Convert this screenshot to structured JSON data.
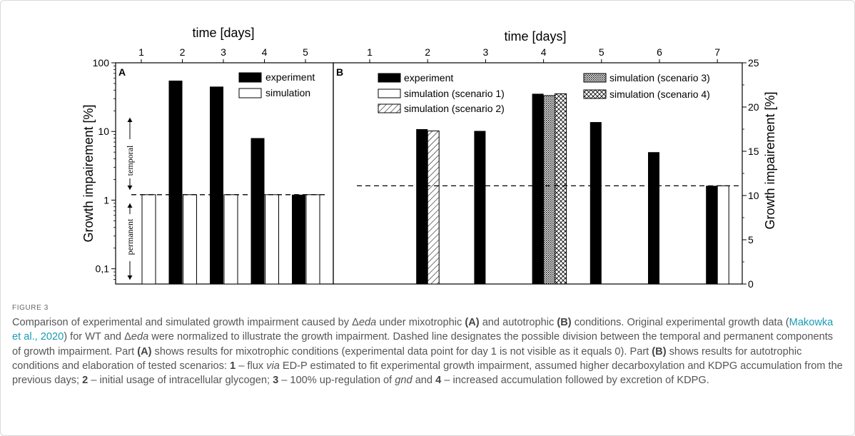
{
  "chart_data": [
    {
      "panel": "A",
      "type": "bar",
      "x_axis_title": "time [days]",
      "y_axis_title": "Growth impairement [%]",
      "y_scale": "log",
      "ylim": [
        0.06,
        100
      ],
      "x_ticks": [
        1,
        2,
        3,
        4,
        5
      ],
      "y_ticks": [
        {
          "value": 100,
          "label": "100"
        },
        {
          "value": 10,
          "label": "10"
        },
        {
          "value": 1,
          "label": "1"
        },
        {
          "value": 0.1,
          "label": "0,1"
        }
      ],
      "legend": {
        "placement": "top-right",
        "entries": [
          "experiment",
          "simulation"
        ]
      },
      "series": [
        {
          "name": "experiment",
          "x": [
            1,
            2,
            3,
            4,
            5
          ],
          "values": [
            0,
            55,
            45,
            8,
            1.2
          ]
        },
        {
          "name": "simulation",
          "x": [
            1,
            2,
            3,
            4,
            5
          ],
          "values": [
            1.2,
            1.2,
            1.2,
            1.2,
            1.2
          ]
        }
      ],
      "dashed_line": 1.2,
      "side_labels": {
        "upper": "temporal",
        "lower": "permanent"
      }
    },
    {
      "panel": "B",
      "type": "bar",
      "x_axis_title": "time [days]",
      "y_axis_title": "Growth impairement [%]",
      "y_axis_side": "right",
      "ylim": [
        0,
        25
      ],
      "x_ticks": [
        1,
        2,
        3,
        4,
        5,
        6,
        7
      ],
      "y_ticks": [
        0,
        5,
        10,
        15,
        20,
        25
      ],
      "legend": {
        "placement": "top",
        "entries": [
          "experiment",
          "simulation (scenario 1)",
          "simulation (scenario 2)",
          "simulation (scenario 3)",
          "simulation (scenario 4)"
        ]
      },
      "series": [
        {
          "name": "experiment",
          "x": [
            2,
            3,
            4,
            5,
            6,
            7
          ],
          "values": [
            17.5,
            17.3,
            21.5,
            18.3,
            14.9,
            11.1
          ]
        },
        {
          "name": "simulation (scenario 1)",
          "x": [
            7
          ],
          "values": [
            11.1
          ]
        },
        {
          "name": "simulation (scenario 2)",
          "x": [
            2
          ],
          "values": [
            17.3
          ]
        },
        {
          "name": "simulation (scenario 3)",
          "x": [
            4
          ],
          "values": [
            21.3
          ]
        },
        {
          "name": "simulation (scenario 4)",
          "x": [
            4
          ],
          "values": [
            21.5
          ]
        }
      ],
      "dashed_line": 11.1
    }
  ],
  "caption": {
    "label": "FIGURE 3",
    "segments": [
      {
        "t": "Comparison of experimental and simulated growth impairment caused by "
      },
      {
        "t": "Δ"
      },
      {
        "t": "eda",
        "s": "i"
      },
      {
        "t": " under mixotrophic "
      },
      {
        "t": "(A)",
        "s": "b"
      },
      {
        "t": " and autotrophic "
      },
      {
        "t": "(B)",
        "s": "b"
      },
      {
        "t": " conditions. Original experimental growth data ("
      },
      {
        "t": "Makowka et al., 2020",
        "s": "a"
      },
      {
        "t": ") for WT and "
      },
      {
        "t": "Δ"
      },
      {
        "t": "eda",
        "s": "i"
      },
      {
        "t": " were normalized to illustrate the growth impairment. Dashed line designates the possible division between the temporal and permanent components of growth impairment. Part "
      },
      {
        "t": "(A)",
        "s": "b"
      },
      {
        "t": " shows results for mixotrophic conditions (experimental data point for day 1 is not visible as it equals 0). Part "
      },
      {
        "t": "(B)",
        "s": "b"
      },
      {
        "t": " shows results for autotrophic conditions and elaboration of tested scenarios: "
      },
      {
        "t": "1",
        "s": "b"
      },
      {
        "t": " – flux "
      },
      {
        "t": "via",
        "s": "i"
      },
      {
        "t": " ED-P estimated to fit experimental growth impairment, assumed higher decarboxylation and KDPG accumulation from the previous days; "
      },
      {
        "t": "2",
        "s": "b"
      },
      {
        "t": " – initial usage of intracellular glycogen; "
      },
      {
        "t": "3",
        "s": "b"
      },
      {
        "t": " – 100% up-regulation of "
      },
      {
        "t": "gnd",
        "s": "i"
      },
      {
        "t": " and "
      },
      {
        "t": "4",
        "s": "b"
      },
      {
        "t": " – increased accumulation followed by excretion of KDPG."
      }
    ]
  }
}
